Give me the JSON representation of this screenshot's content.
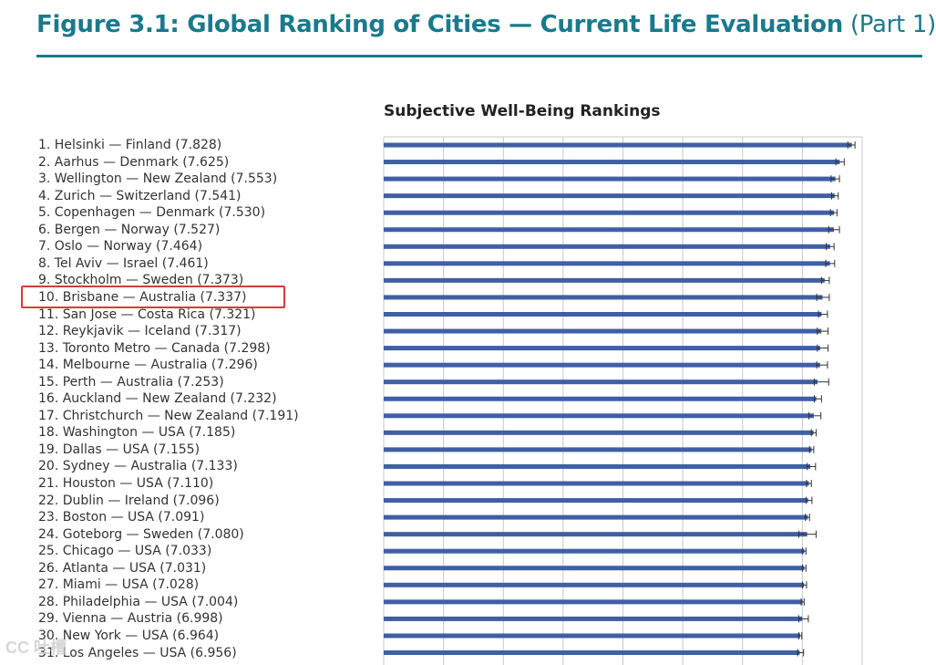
{
  "figure": {
    "title_main": "Figure 3.1: Global Ranking of Cities — Current Life Evaluation",
    "title_part": "(Part 1)"
  },
  "watermark": "CC 吐槽",
  "colors": {
    "title": "#1a7a8c",
    "bar": "#3f5fa6",
    "grid": "#c8c8c8",
    "highlight": "#d93a3a"
  },
  "chart_data": {
    "type": "bar",
    "orientation": "horizontal",
    "title": "Subjective Well-Being Rankings",
    "grid": true,
    "error_bars": true,
    "highlighted": "10. Brisbane — Australia (7.337)",
    "categories": [
      "1. Helsinki — Finland (7.828)",
      "2. Aarhus — Denmark (7.625)",
      "3. Wellington — New Zealand (7.553)",
      "4. Zurich — Switzerland (7.541)",
      "5. Copenhagen — Denmark (7.530)",
      "6. Bergen — Norway (7.527)",
      "7. Oslo — Norway (7.464)",
      "8. Tel Aviv — Israel (7.461)",
      "9. Stockholm — Sweden (7.373)",
      "10. Brisbane — Australia (7.337)",
      "11. San Jose — Costa Rica (7.321)",
      "12. Reykjavik — Iceland (7.317)",
      "13. Toronto Metro — Canada (7.298)",
      "14. Melbourne — Australia (7.296)",
      "15. Perth — Australia (7.253)",
      "16. Auckland — New Zealand (7.232)",
      "17. Christchurch — New Zealand (7.191)",
      "18. Washington — USA (7.185)",
      "19. Dallas — USA (7.155)",
      "20. Sydney — Australia (7.133)",
      "21. Houston — USA (7.110)",
      "22. Dublin — Ireland (7.096)",
      "23. Boston — USA (7.091)",
      "24. Goteborg — Sweden (7.080)",
      "25. Chicago — USA (7.033)",
      "26. Atlanta — USA (7.031)",
      "27. Miami — USA (7.028)",
      "28. Philadelphia — USA (7.004)",
      "29. Vienna — Austria (6.998)",
      "30. New York — USA (6.964)",
      "31. Los Angeles — USA (6.956)"
    ],
    "values": [
      7.828,
      7.625,
      7.553,
      7.541,
      7.53,
      7.527,
      7.464,
      7.461,
      7.373,
      7.337,
      7.321,
      7.317,
      7.298,
      7.296,
      7.253,
      7.232,
      7.191,
      7.185,
      7.155,
      7.133,
      7.11,
      7.096,
      7.091,
      7.08,
      7.033,
      7.031,
      7.028,
      7.004,
      6.998,
      6.964,
      6.956
    ],
    "ci_low": [
      7.76,
      7.56,
      7.48,
      7.49,
      7.47,
      7.44,
      7.4,
      7.39,
      7.32,
      7.24,
      7.27,
      7.25,
      7.25,
      7.24,
      7.2,
      7.2,
      7.11,
      7.15,
      7.12,
      7.08,
      7.07,
      7.06,
      7.05,
      6.94,
      7.0,
      7.0,
      7.0,
      6.98,
      6.94,
      6.94,
      6.92
    ],
    "ci_high": [
      7.88,
      7.7,
      7.62,
      7.6,
      7.58,
      7.62,
      7.53,
      7.54,
      7.45,
      7.45,
      7.42,
      7.43,
      7.43,
      7.42,
      7.44,
      7.32,
      7.31,
      7.23,
      7.19,
      7.22,
      7.15,
      7.16,
      7.12,
      7.23,
      7.06,
      7.06,
      7.07,
      7.03,
      7.1,
      6.99,
      7.02
    ],
    "xlim": [
      0,
      8
    ],
    "gridlines_at": [
      1,
      2,
      3,
      4,
      5,
      6,
      7,
      8
    ]
  }
}
